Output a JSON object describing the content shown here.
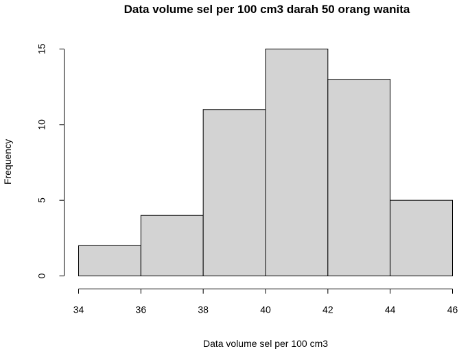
{
  "chart_data": {
    "type": "bar",
    "subtype": "histogram",
    "title": "Data volume sel per 100 cm3 darah 50 orang wanita",
    "xlabel": "Data volume sel per 100 cm3",
    "ylabel": "Frequency",
    "bins": [
      {
        "from": 34,
        "to": 36,
        "count": 2
      },
      {
        "from": 36,
        "to": 38,
        "count": 4
      },
      {
        "from": 38,
        "to": 40,
        "count": 11
      },
      {
        "from": 40,
        "to": 42,
        "count": 15
      },
      {
        "from": 42,
        "to": 44,
        "count": 13
      },
      {
        "from": 44,
        "to": 46,
        "count": 5
      }
    ],
    "xlim": [
      34,
      46
    ],
    "ylim": [
      0,
      15
    ],
    "x_ticks": [
      34,
      36,
      38,
      40,
      42,
      44,
      46
    ],
    "y_ticks": [
      0,
      5,
      10,
      15
    ],
    "grid": false,
    "colors": {
      "bar_fill": "#d3d3d3",
      "bar_stroke": "#000000"
    }
  }
}
